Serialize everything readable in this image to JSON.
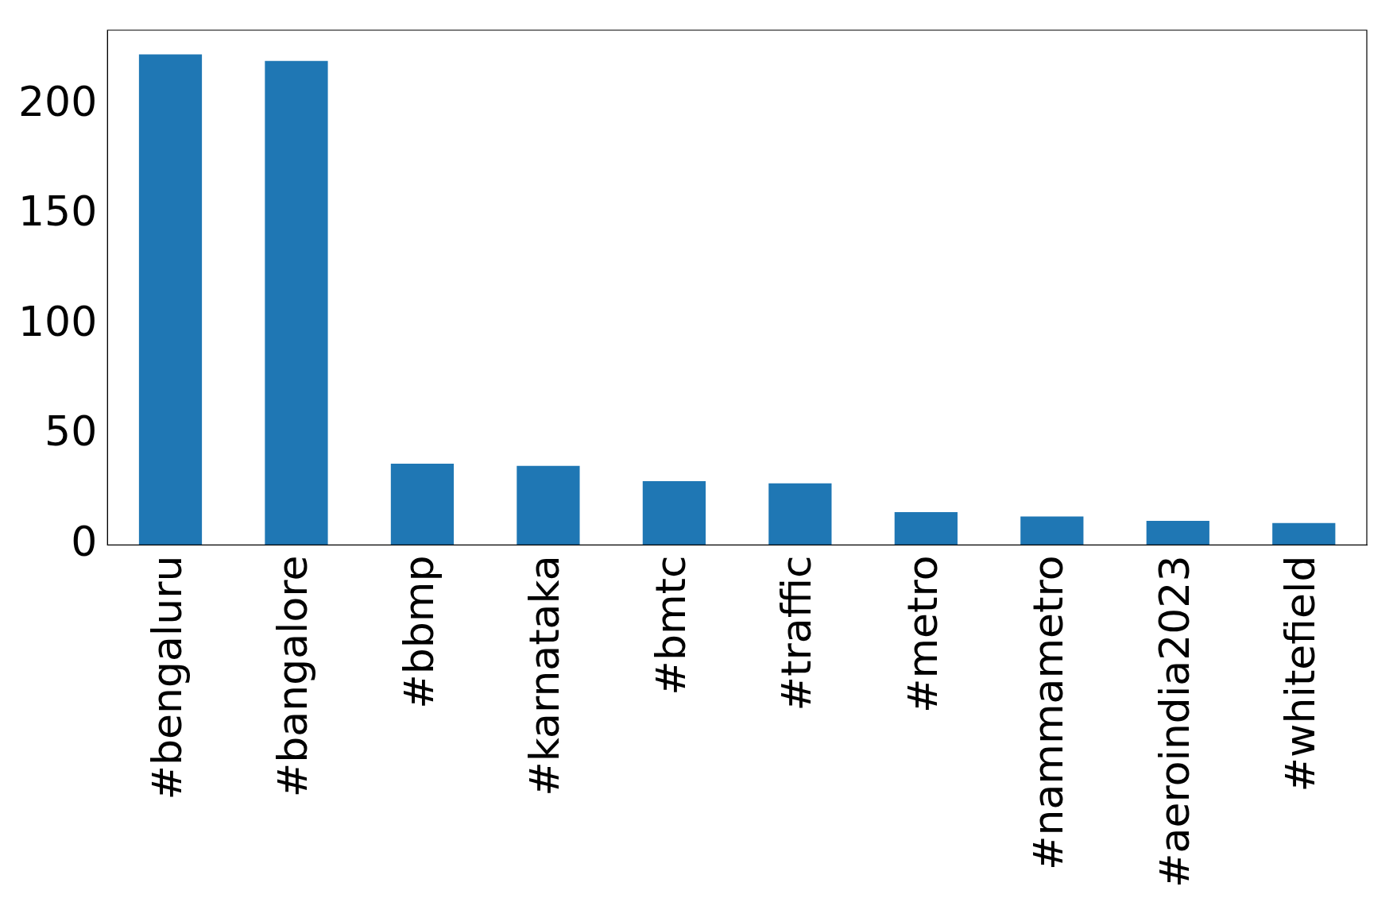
{
  "chart_data": {
    "type": "bar",
    "categories": [
      "#bengaluru",
      "#bangalore",
      "#bbmp",
      "#karnataka",
      "#bmtc",
      "#traffic",
      "#metro",
      "#nammametro",
      "#aeroindia2023",
      "#whitefield"
    ],
    "values": [
      223,
      220,
      37,
      36,
      29,
      28,
      15,
      13,
      11,
      10
    ],
    "color": "#1f77b4",
    "ylim": [
      0,
      234
    ],
    "yticks": [
      0,
      50,
      100,
      150,
      200
    ],
    "grid": false,
    "legend": false
  }
}
